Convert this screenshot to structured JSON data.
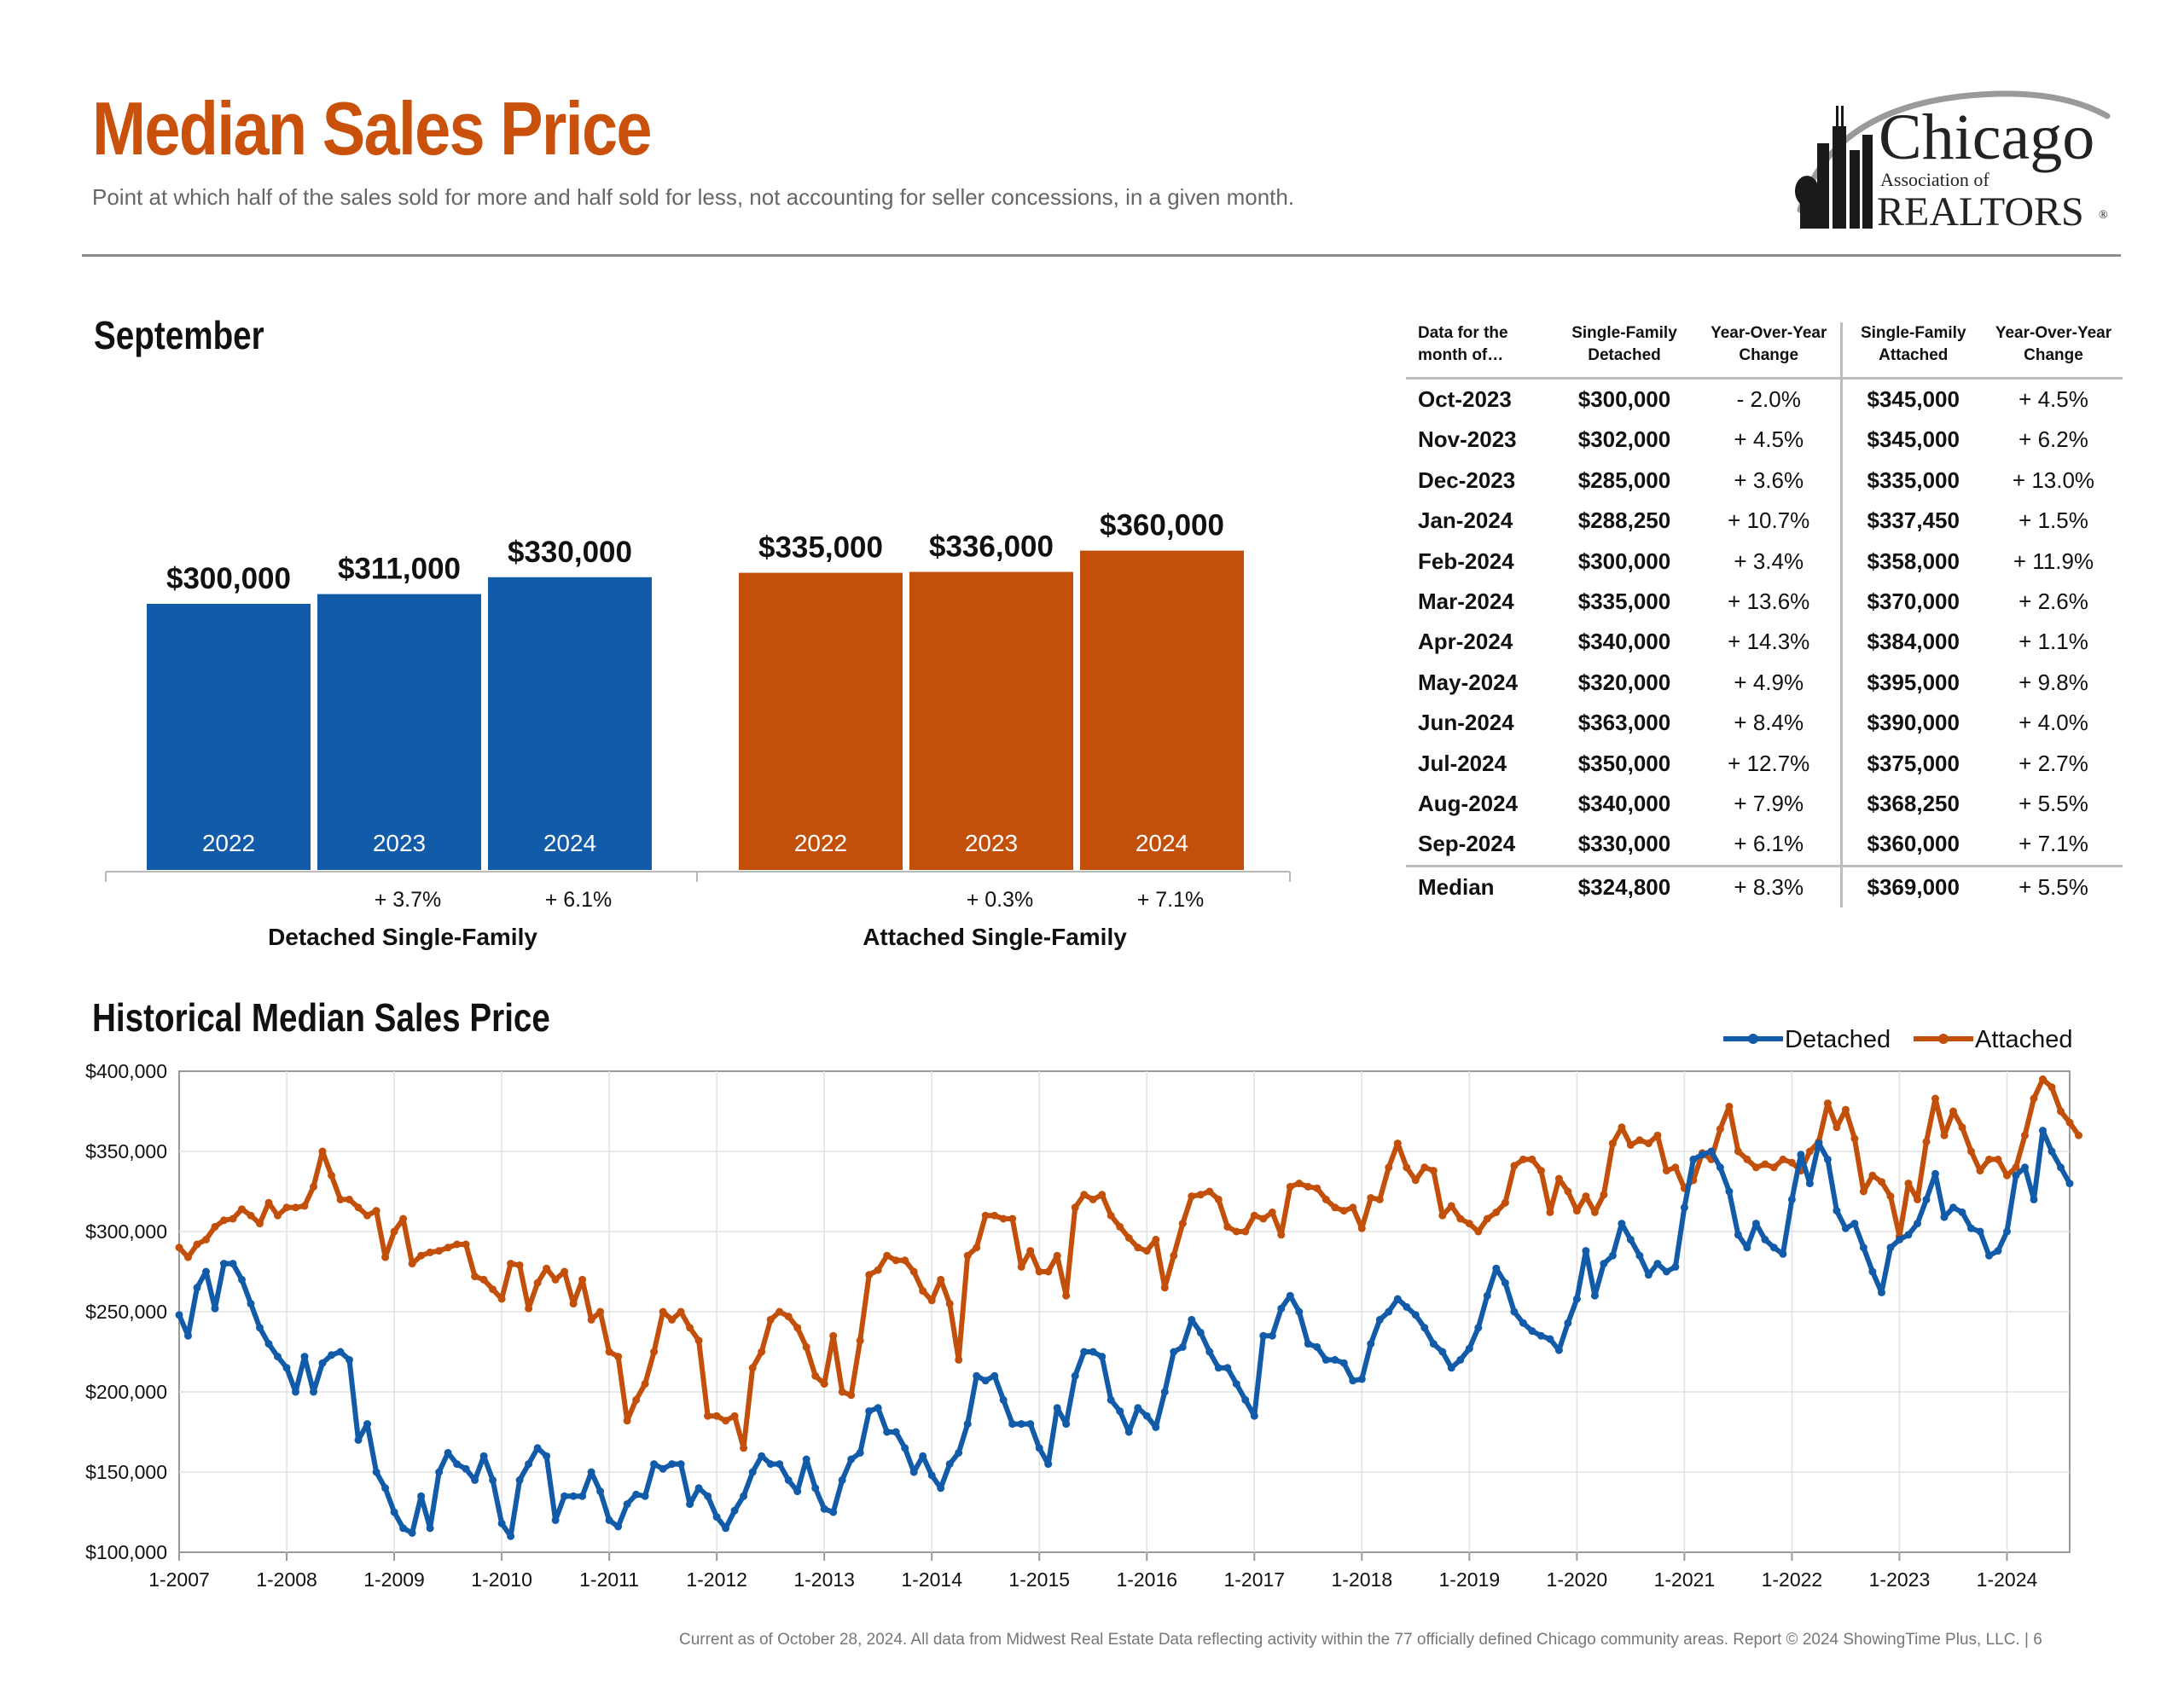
{
  "header": {
    "title": "Median Sales Price",
    "subtitle": "Point at which half of the sales sold for more and half sold for less, not accounting for seller concessions, in a given month."
  },
  "logo": {
    "line1": "Chicago",
    "line2": "Association of",
    "line3": "REALTORS",
    "mark": "®"
  },
  "colors": {
    "detached": "#125ba9",
    "attached": "#c2500a",
    "title": "#c9510c",
    "rule": "#8c8c8c"
  },
  "section_month": "September",
  "section_hist": "Historical Median Sales Price",
  "footer": "Current as of October 28, 2024.  All data from Midwest Real Estate Data reflecting activity within the 77 officially defined Chicago community areas. Report © 2024 ShowingTime Plus, LLC.  |  6",
  "table": {
    "headers": [
      "Data for the\nmonth of…",
      "Single-Family\nDetached",
      "Year-Over-Year\nChange",
      "Single-Family\nAttached",
      "Year-Over-Year\nChange"
    ],
    "rows": [
      {
        "month": "Oct-2023",
        "detached": "$300,000",
        "d_change": "- 2.0%",
        "attached": "$345,000",
        "a_change": "+ 4.5%"
      },
      {
        "month": "Nov-2023",
        "detached": "$302,000",
        "d_change": "+ 4.5%",
        "attached": "$345,000",
        "a_change": "+ 6.2%"
      },
      {
        "month": "Dec-2023",
        "detached": "$285,000",
        "d_change": "+ 3.6%",
        "attached": "$335,000",
        "a_change": "+ 13.0%"
      },
      {
        "month": "Jan-2024",
        "detached": "$288,250",
        "d_change": "+ 10.7%",
        "attached": "$337,450",
        "a_change": "+ 1.5%"
      },
      {
        "month": "Feb-2024",
        "detached": "$300,000",
        "d_change": "+ 3.4%",
        "attached": "$358,000",
        "a_change": "+ 11.9%"
      },
      {
        "month": "Mar-2024",
        "detached": "$335,000",
        "d_change": "+ 13.6%",
        "attached": "$370,000",
        "a_change": "+ 2.6%"
      },
      {
        "month": "Apr-2024",
        "detached": "$340,000",
        "d_change": "+ 14.3%",
        "attached": "$384,000",
        "a_change": "+ 1.1%"
      },
      {
        "month": "May-2024",
        "detached": "$320,000",
        "d_change": "+ 4.9%",
        "attached": "$395,000",
        "a_change": "+ 9.8%"
      },
      {
        "month": "Jun-2024",
        "detached": "$363,000",
        "d_change": "+ 8.4%",
        "attached": "$390,000",
        "a_change": "+ 4.0%"
      },
      {
        "month": "Jul-2024",
        "detached": "$350,000",
        "d_change": "+ 12.7%",
        "attached": "$375,000",
        "a_change": "+ 2.7%"
      },
      {
        "month": "Aug-2024",
        "detached": "$340,000",
        "d_change": "+ 7.9%",
        "attached": "$368,250",
        "a_change": "+ 5.5%"
      },
      {
        "month": "Sep-2024",
        "detached": "$330,000",
        "d_change": "+ 6.1%",
        "attached": "$360,000",
        "a_change": "+ 7.1%"
      }
    ],
    "median": {
      "month": "Median",
      "detached": "$324,800",
      "d_change": "+ 8.3%",
      "attached": "$369,000",
      "a_change": "+ 5.5%"
    }
  },
  "chart_data": [
    {
      "type": "bar",
      "title": "September",
      "groups": [
        {
          "name": "Detached Single-Family",
          "color": "#125ba9",
          "categories": [
            "2022",
            "2023",
            "2024"
          ],
          "values": [
            300000,
            311000,
            330000
          ],
          "value_labels": [
            "$300,000",
            "$311,000",
            "$330,000"
          ],
          "changes": [
            "",
            "+ 3.7%",
            "+ 6.1%"
          ]
        },
        {
          "name": "Attached Single-Family",
          "color": "#c2500a",
          "categories": [
            "2022",
            "2023",
            "2024"
          ],
          "values": [
            335000,
            336000,
            360000
          ],
          "value_labels": [
            "$335,000",
            "$336,000",
            "$360,000"
          ],
          "changes": [
            "",
            "+ 0.3%",
            "+ 7.1%"
          ]
        }
      ]
    },
    {
      "type": "line",
      "title": "Historical Median Sales Price",
      "legend_position": "top-right",
      "x_start": "1-2007",
      "x_ticks": [
        "1-2007",
        "1-2008",
        "1-2009",
        "1-2010",
        "1-2011",
        "1-2012",
        "1-2013",
        "1-2014",
        "1-2015",
        "1-2016",
        "1-2017",
        "1-2018",
        "1-2019",
        "1-2020",
        "1-2021",
        "1-2022",
        "1-2023",
        "1-2024"
      ],
      "y_ticks": [
        "$100,000",
        "$150,000",
        "$200,000",
        "$250,000",
        "$300,000",
        "$350,000",
        "$400,000"
      ],
      "ylim": [
        100000,
        400000
      ],
      "grid": true,
      "series": [
        {
          "name": "Detached",
          "color": "#125ba9",
          "values": [
            248000,
            235000,
            265000,
            275000,
            252000,
            280000,
            280000,
            270000,
            255000,
            240000,
            230000,
            222000,
            215000,
            200000,
            222000,
            200000,
            218000,
            223000,
            225000,
            220000,
            170000,
            180000,
            150000,
            140000,
            125000,
            115000,
            112000,
            135000,
            115000,
            150000,
            162000,
            155000,
            152000,
            145000,
            160000,
            145000,
            118000,
            110000,
            145000,
            155000,
            165000,
            160000,
            120000,
            135000,
            135000,
            135000,
            150000,
            138000,
            120000,
            116000,
            130000,
            136000,
            135000,
            155000,
            152000,
            155000,
            155000,
            130000,
            140000,
            135000,
            122000,
            115000,
            126000,
            135000,
            150000,
            160000,
            155000,
            155000,
            145000,
            138000,
            158000,
            140000,
            127000,
            125000,
            145000,
            158000,
            162000,
            188000,
            190000,
            175000,
            175000,
            165000,
            150000,
            160000,
            148000,
            140000,
            155000,
            162000,
            180000,
            210000,
            207000,
            210000,
            195000,
            180000,
            180000,
            180000,
            165000,
            155000,
            190000,
            180000,
            210000,
            225000,
            225000,
            222000,
            195000,
            188000,
            175000,
            190000,
            185000,
            178000,
            200000,
            225000,
            228000,
            245000,
            237000,
            225000,
            215000,
            215000,
            205000,
            195000,
            185000,
            235000,
            235000,
            252000,
            260000,
            250000,
            230000,
            228000,
            220000,
            220000,
            218000,
            207000,
            208000,
            230000,
            245000,
            250000,
            258000,
            253000,
            248000,
            240000,
            230000,
            225000,
            215000,
            220000,
            227000,
            240000,
            260000,
            277000,
            268000,
            250000,
            243000,
            238000,
            235000,
            233000,
            226000,
            243000,
            258000,
            288000,
            260000,
            280000,
            285000,
            305000,
            295000,
            285000,
            273000,
            280000,
            275000,
            278000,
            315000,
            345000,
            348000,
            350000,
            340000,
            325000,
            298000,
            290000,
            305000,
            295000,
            290000,
            286000,
            320000,
            348000,
            330000,
            355000,
            345000,
            313000,
            302000,
            305000,
            290000,
            275000,
            262000,
            290000,
            295000,
            298000,
            305000,
            320000,
            336000,
            309000,
            315000,
            312000,
            302000,
            300000,
            285000,
            288000,
            300000,
            335000,
            340000,
            320000,
            363000,
            350000,
            340000,
            330000
          ]
        },
        {
          "name": "Attached",
          "color": "#c2500a",
          "values": [
            290000,
            284000,
            292000,
            295000,
            303000,
            307000,
            308000,
            314000,
            310000,
            305000,
            318000,
            310000,
            315000,
            315000,
            316000,
            328000,
            350000,
            335000,
            320000,
            320000,
            315000,
            310000,
            313000,
            284000,
            300000,
            308000,
            280000,
            285000,
            287000,
            288000,
            290000,
            292000,
            292000,
            272000,
            270000,
            264000,
            258000,
            280000,
            279000,
            252000,
            268000,
            277000,
            270000,
            275000,
            255000,
            270000,
            245000,
            250000,
            225000,
            222000,
            182000,
            195000,
            205000,
            225000,
            250000,
            245000,
            250000,
            240000,
            232000,
            185000,
            185000,
            182000,
            185000,
            165000,
            215000,
            225000,
            245000,
            250000,
            247000,
            240000,
            228000,
            210000,
            205000,
            235000,
            200000,
            198000,
            232000,
            273000,
            276000,
            285000,
            282000,
            282000,
            275000,
            263000,
            257000,
            270000,
            255000,
            220000,
            285000,
            290000,
            310000,
            310000,
            308000,
            308000,
            278000,
            288000,
            275000,
            275000,
            285000,
            260000,
            315000,
            323000,
            320000,
            323000,
            310000,
            303000,
            296000,
            290000,
            288000,
            295000,
            265000,
            285000,
            305000,
            322000,
            323000,
            325000,
            320000,
            303000,
            300000,
            300000,
            310000,
            308000,
            312000,
            298000,
            328000,
            330000,
            328000,
            327000,
            320000,
            315000,
            313000,
            315000,
            302000,
            321000,
            320000,
            340000,
            355000,
            340000,
            332000,
            340000,
            338000,
            310000,
            316000,
            308000,
            305000,
            300000,
            308000,
            312000,
            318000,
            341000,
            345000,
            345000,
            338000,
            312000,
            333000,
            325000,
            313000,
            322000,
            312000,
            323000,
            355000,
            365000,
            354000,
            357000,
            355000,
            360000,
            338000,
            340000,
            327000,
            332000,
            349000,
            345000,
            364000,
            378000,
            350000,
            345000,
            340000,
            342000,
            340000,
            345000,
            343000,
            338000,
            350000,
            356000,
            380000,
            365000,
            376000,
            358000,
            325000,
            335000,
            331000,
            322000,
            297000,
            330000,
            320000,
            356000,
            383000,
            360000,
            375000,
            365000,
            350000,
            338000,
            345000,
            345000,
            335000,
            340000,
            360000,
            383000,
            395000,
            390000,
            375000,
            368000,
            360000
          ]
        }
      ]
    }
  ]
}
